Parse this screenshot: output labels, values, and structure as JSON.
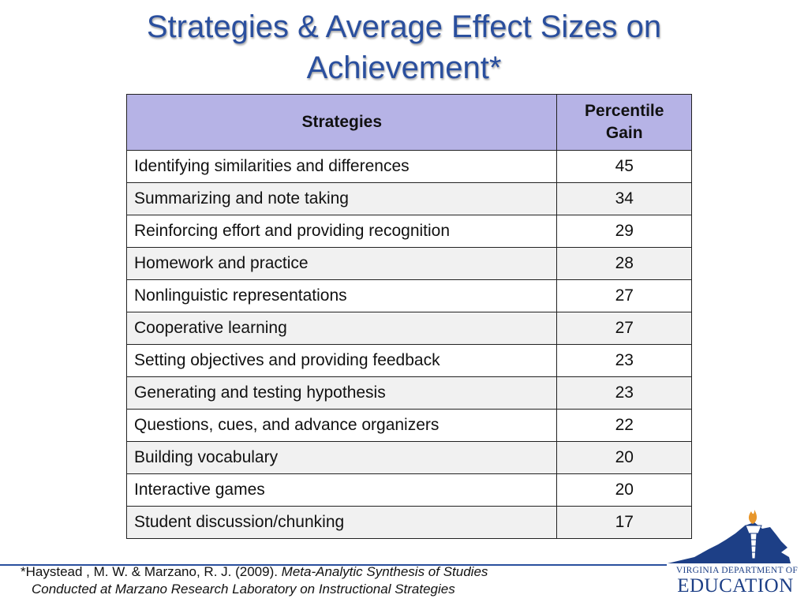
{
  "slide": {
    "title_line1": "Strategies & Average Effect Sizes on",
    "title_line2": "Achievement*"
  },
  "table": {
    "header_strategy": "Strategies",
    "header_gain_line1": "Percentile",
    "header_gain_line2": "Gain",
    "rows": [
      {
        "strategy": "Identifying similarities and differences",
        "gain": "45"
      },
      {
        "strategy": "Summarizing and note taking",
        "gain": "34"
      },
      {
        "strategy": "Reinforcing effort and providing recognition",
        "gain": "29"
      },
      {
        "strategy": "Homework and practice",
        "gain": "28"
      },
      {
        "strategy": "Nonlinguistic representations",
        "gain": "27"
      },
      {
        "strategy": "Cooperative learning",
        "gain": "27"
      },
      {
        "strategy": "Setting objectives and providing feedback",
        "gain": "23"
      },
      {
        "strategy": "Generating and testing hypothesis",
        "gain": "23"
      },
      {
        "strategy": "Questions, cues, and advance organizers",
        "gain": "22"
      },
      {
        "strategy": "Building vocabulary",
        "gain": "20"
      },
      {
        "strategy": "Interactive games",
        "gain": "20"
      },
      {
        "strategy": "Student discussion/chunking",
        "gain": "17"
      }
    ]
  },
  "footnote": {
    "citation": "*Haystead , M. W. & Marzano, R. J. (2009). ",
    "title_part1": "Meta-Analytic Synthesis of Studies",
    "title_part2": "Conducted at Marzano Research Laboratory on Instructional Strategies"
  },
  "logo": {
    "line1": "VIRGINIA DEPARTMENT OF",
    "line2": "EDUCATION"
  },
  "colors": {
    "title": "#2a4f9e",
    "header_fill": "#b6b3e6",
    "rule": "#2a4f9e",
    "logo_blue": "#1d3f86"
  }
}
